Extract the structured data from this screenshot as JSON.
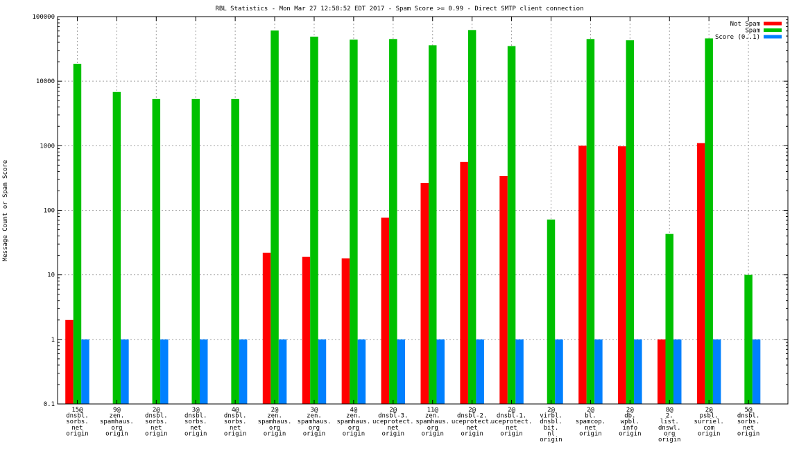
{
  "chart_data": {
    "type": "bar",
    "title": "RBL Statistics - Mon Mar 27 12:58:52 EDT 2017 - Spam Score >= 0.99 - Direct SMTP client connection",
    "xlabel": "",
    "ylabel": "Message Count or Spam Score",
    "yscale": "log",
    "ylim": [
      0.1,
      100000
    ],
    "yticks": [
      "0.1",
      "1",
      "10",
      "100",
      "1000",
      "10000",
      "100000"
    ],
    "grid": true,
    "legend_position": "top-right",
    "categories": [
      [
        "15@",
        "dnsbl.",
        "sorbs.",
        "net",
        "origin"
      ],
      [
        "9@",
        "zen.",
        "spamhaus.",
        "org",
        "origin"
      ],
      [
        "2@",
        "dnsbl.",
        "sorbs.",
        "net",
        "origin"
      ],
      [
        "3@",
        "dnsbl.",
        "sorbs.",
        "net",
        "origin"
      ],
      [
        "4@",
        "dnsbl.",
        "sorbs.",
        "net",
        "origin"
      ],
      [
        "2@",
        "zen.",
        "spamhaus.",
        "org",
        "origin"
      ],
      [
        "3@",
        "zen.",
        "spamhaus.",
        "org",
        "origin"
      ],
      [
        "4@",
        "zen.",
        "spamhaus.",
        "org",
        "origin"
      ],
      [
        "2@",
        "dnsbl-3.",
        "uceprotect.",
        "net",
        "origin"
      ],
      [
        "11@",
        "zen.",
        "spamhaus.",
        "org",
        "origin"
      ],
      [
        "2@",
        "dnsbl-2.",
        "uceprotect.",
        "net",
        "origin"
      ],
      [
        "2@",
        "dnsbl-1.",
        "uceprotect.",
        "net",
        "origin"
      ],
      [
        "2@",
        "virbl.",
        "dnsbl.",
        "bit.",
        "nl",
        "origin"
      ],
      [
        "2@",
        "bl.",
        "spamcop.",
        "net",
        "origin"
      ],
      [
        "2@",
        "db.",
        "wpbl.",
        "info",
        "origin"
      ],
      [
        "8@",
        "2.",
        "list.",
        "dnswl.",
        "org",
        "origin"
      ],
      [
        "2@",
        "psbl.",
        "surriel.",
        "com",
        "origin"
      ],
      [
        "5@",
        "dnsbl.",
        "sorbs.",
        "net",
        "origin"
      ]
    ],
    "series": [
      {
        "name": "Not Spam",
        "color": "#ff0000",
        "values": [
          2,
          null,
          null,
          null,
          null,
          22,
          19,
          18,
          77,
          265,
          560,
          340,
          null,
          1000,
          980,
          1,
          1100,
          null
        ]
      },
      {
        "name": "Spam",
        "color": "#00c000",
        "values": [
          18600,
          6800,
          5300,
          5300,
          5300,
          61000,
          49000,
          44000,
          45000,
          36000,
          62000,
          35000,
          72,
          45000,
          43000,
          43,
          46000,
          10
        ]
      },
      {
        "name": "Score (0..1)",
        "color": "#0080ff",
        "values": [
          1,
          1,
          1,
          1,
          1,
          1,
          1,
          1,
          1,
          1,
          1,
          1,
          1,
          1,
          1,
          1,
          1,
          1
        ]
      }
    ]
  }
}
